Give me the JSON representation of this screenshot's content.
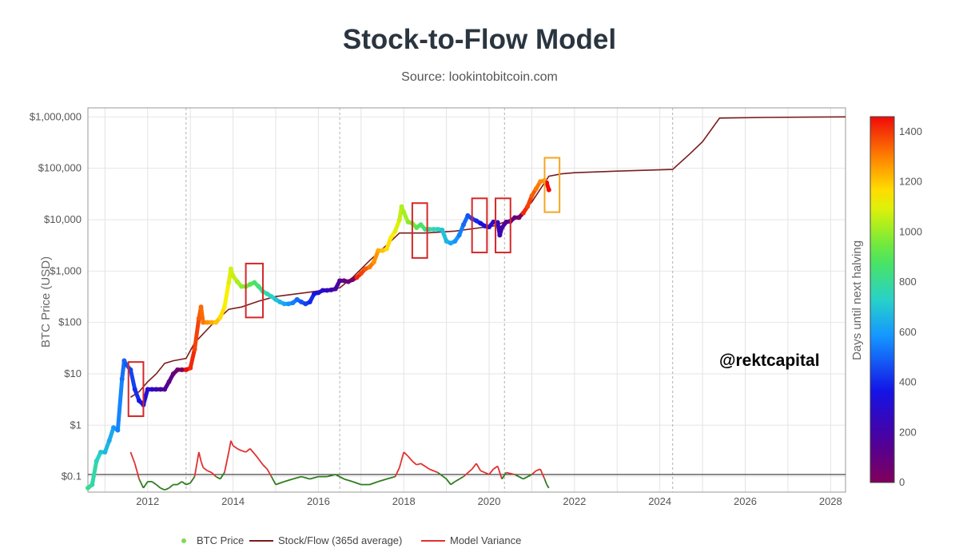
{
  "header": {
    "title": "Stock-to-Flow Model",
    "subtitle": "Source: lookintobitcoin.com"
  },
  "annotation": {
    "handle": "@rektcapital"
  },
  "colors": {
    "stock_flow": "#7b1c1c",
    "variance_above": "#e03131",
    "variance_below": "#2f7d1e",
    "baseline": "#444444",
    "box_red": "#d62728",
    "box_orange": "#f5a623"
  },
  "chart_data": {
    "type": "scatter",
    "title": "Stock-to-Flow Model",
    "xlabel": "",
    "ylabel": "BTC Price (USD)",
    "y_scale": "log",
    "ylim": [
      0.05,
      1500000
    ],
    "xlim": [
      2010.6,
      2028.35
    ],
    "y_ticks": [
      {
        "value": 0.1,
        "label": "$0.1"
      },
      {
        "value": 1,
        "label": "$1"
      },
      {
        "value": 10,
        "label": "$10"
      },
      {
        "value": 100,
        "label": "$100"
      },
      {
        "value": 1000,
        "label": "$1,000"
      },
      {
        "value": 10000,
        "label": "$10,000"
      },
      {
        "value": 100000,
        "label": "$100,000"
      },
      {
        "value": 1000000,
        "label": "$1,000,000"
      }
    ],
    "x_ticks": [
      {
        "value": 2012,
        "label": "2012"
      },
      {
        "value": 2014,
        "label": "2014"
      },
      {
        "value": 2016,
        "label": "2016"
      },
      {
        "value": 2018,
        "label": "2018"
      },
      {
        "value": 2020,
        "label": "2020"
      },
      {
        "value": 2022,
        "label": "2022"
      },
      {
        "value": 2024,
        "label": "2024"
      },
      {
        "value": 2026,
        "label": "2026"
      },
      {
        "value": 2028,
        "label": "2028"
      }
    ],
    "halvings": [
      2012.9,
      2016.5,
      2020.36,
      2024.3
    ],
    "colorbar": {
      "label": "Days until next halving",
      "min": 0,
      "max": 1460,
      "ticks": [
        0,
        200,
        400,
        600,
        800,
        1000,
        1200,
        1400
      ]
    },
    "legend": [
      {
        "name": "BTC Price",
        "kind": "marker",
        "color": "#7ed957"
      },
      {
        "name": "Stock/Flow (365d average)",
        "kind": "line",
        "color": "#7b1c1c"
      },
      {
        "name": "Model Variance",
        "kind": "line",
        "color": "#e03131"
      }
    ],
    "series": [
      {
        "name": "BTC Price",
        "x": [
          2010.6,
          2010.7,
          2010.8,
          2010.9,
          2011.0,
          2011.1,
          2011.2,
          2011.3,
          2011.4,
          2011.45,
          2011.5,
          2011.6,
          2011.7,
          2011.8,
          2011.9,
          2012.0,
          2012.1,
          2012.2,
          2012.3,
          2012.4,
          2012.5,
          2012.6,
          2012.7,
          2012.8,
          2012.9,
          2013.0,
          2013.1,
          2013.2,
          2013.25,
          2013.3,
          2013.4,
          2013.5,
          2013.6,
          2013.7,
          2013.8,
          2013.9,
          2013.95,
          2014.0,
          2014.1,
          2014.2,
          2014.3,
          2014.4,
          2014.5,
          2014.6,
          2014.7,
          2014.8,
          2014.9,
          2015.0,
          2015.1,
          2015.2,
          2015.3,
          2015.4,
          2015.5,
          2015.6,
          2015.7,
          2015.8,
          2015.9,
          2016.0,
          2016.1,
          2016.2,
          2016.3,
          2016.4,
          2016.5,
          2016.6,
          2016.7,
          2016.8,
          2016.9,
          2017.0,
          2017.1,
          2017.2,
          2017.3,
          2017.4,
          2017.5,
          2017.6,
          2017.7,
          2017.8,
          2017.9,
          2017.95,
          2018.0,
          2018.1,
          2018.2,
          2018.3,
          2018.4,
          2018.5,
          2018.6,
          2018.7,
          2018.8,
          2018.9,
          2019.0,
          2019.1,
          2019.2,
          2019.3,
          2019.4,
          2019.5,
          2019.6,
          2019.7,
          2019.8,
          2019.9,
          2020.0,
          2020.1,
          2020.2,
          2020.25,
          2020.3,
          2020.4,
          2020.5,
          2020.6,
          2020.7,
          2020.8,
          2020.9,
          2021.0,
          2021.1,
          2021.2,
          2021.3,
          2021.35,
          2021.4
        ],
        "y": [
          0.06,
          0.07,
          0.2,
          0.3,
          0.3,
          0.5,
          0.9,
          0.8,
          8,
          18,
          15,
          12,
          5,
          3,
          2.5,
          5,
          5,
          5,
          5,
          5,
          7,
          10,
          12,
          12,
          12,
          13,
          30,
          120,
          200,
          100,
          100,
          100,
          100,
          125,
          200,
          600,
          1100,
          800,
          620,
          500,
          500,
          550,
          600,
          500,
          400,
          360,
          320,
          280,
          250,
          230,
          230,
          240,
          280,
          250,
          230,
          250,
          360,
          380,
          420,
          420,
          430,
          450,
          650,
          650,
          620,
          680,
          750,
          900,
          1100,
          1200,
          1500,
          2500,
          2500,
          2700,
          4500,
          6000,
          10000,
          18000,
          14000,
          9000,
          8500,
          7000,
          8000,
          6500,
          6500,
          6500,
          6500,
          6300,
          3800,
          3500,
          3800,
          5000,
          8000,
          12000,
          10500,
          9500,
          8500,
          7500,
          7200,
          9000,
          8800,
          5000,
          7000,
          9000,
          9300,
          11000,
          11000,
          13500,
          18000,
          29000,
          40000,
          55000,
          58000,
          52000,
          38000
        ],
        "days_to_halving": [
          810,
          775,
          740,
          700,
          665,
          630,
          590,
          555,
          520,
          500,
          480,
          445,
          410,
          370,
          335,
          300,
          265,
          230,
          190,
          155,
          120,
          80,
          45,
          10,
          1460,
          1420,
          1385,
          1350,
          1330,
          1310,
          1275,
          1240,
          1200,
          1165,
          1130,
          1095,
          1075,
          1055,
          1020,
          985,
          950,
          910,
          875,
          840,
          800,
          765,
          730,
          690,
          655,
          620,
          580,
          545,
          510,
          470,
          435,
          400,
          365,
          325,
          290,
          255,
          215,
          180,
          145,
          105,
          70,
          30,
          1420,
          1385,
          1350,
          1310,
          1275,
          1240,
          1205,
          1165,
          1130,
          1095,
          1055,
          1035,
          1020,
          985,
          950,
          910,
          875,
          840,
          800,
          765,
          730,
          690,
          655,
          620,
          580,
          545,
          510,
          470,
          435,
          400,
          360,
          325,
          290,
          270,
          250,
          215,
          180,
          140,
          105,
          70,
          30,
          1420,
          1385,
          1350,
          1310,
          1290,
          1275
        ]
      },
      {
        "name": "Stock/Flow (365d average)",
        "x": [
          2011.6,
          2011.8,
          2012.0,
          2012.2,
          2012.4,
          2012.6,
          2012.9,
          2013.1,
          2013.5,
          2013.9,
          2014.2,
          2014.6,
          2015.0,
          2015.6,
          2016.0,
          2016.5,
          2016.8,
          2017.2,
          2017.6,
          2017.9,
          2018.5,
          2019.2,
          2019.8,
          2020.1,
          2020.36,
          2020.7,
          2021.0,
          2021.4,
          2021.7,
          2022.0,
          2023.0,
          2024.3,
          2024.7,
          2025.0,
          2025.4,
          2026.5,
          2027.5,
          2028.35
        ],
        "y": [
          3.5,
          4.5,
          7,
          10,
          16,
          18,
          20,
          40,
          90,
          180,
          200,
          260,
          320,
          370,
          410,
          470,
          750,
          1600,
          3200,
          5500,
          5500,
          6000,
          7000,
          7500,
          9000,
          12000,
          22000,
          70000,
          78000,
          82000,
          88000,
          95000,
          190000,
          330000,
          950000,
          975000,
          990000,
          1000000
        ]
      },
      {
        "name": "Model Variance",
        "above_threshold_color": "#e03131",
        "below_threshold_color": "#2f7d1e",
        "threshold": 0.11,
        "x": [
          2011.6,
          2011.7,
          2011.8,
          2011.9,
          2012.0,
          2012.1,
          2012.2,
          2012.3,
          2012.4,
          2012.5,
          2012.6,
          2012.7,
          2012.8,
          2012.9,
          2013.0,
          2013.1,
          2013.2,
          2013.25,
          2013.3,
          2013.4,
          2013.5,
          2013.6,
          2013.7,
          2013.8,
          2013.9,
          2013.95,
          2014.0,
          2014.1,
          2014.2,
          2014.3,
          2014.4,
          2014.5,
          2014.6,
          2014.7,
          2014.8,
          2014.9,
          2015.0,
          2015.2,
          2015.4,
          2015.6,
          2015.8,
          2016.0,
          2016.2,
          2016.4,
          2016.6,
          2016.8,
          2017.0,
          2017.2,
          2017.4,
          2017.6,
          2017.8,
          2017.9,
          2018.0,
          2018.1,
          2018.2,
          2018.3,
          2018.4,
          2018.6,
          2018.8,
          2019.0,
          2019.1,
          2019.2,
          2019.4,
          2019.6,
          2019.7,
          2019.8,
          2019.9,
          2020.0,
          2020.1,
          2020.2,
          2020.3,
          2020.4,
          2020.6,
          2020.8,
          2021.0,
          2021.1,
          2021.2,
          2021.3,
          2021.35,
          2021.4
        ],
        "y": [
          0.3,
          0.18,
          0.09,
          0.06,
          0.08,
          0.08,
          0.07,
          0.06,
          0.055,
          0.06,
          0.07,
          0.07,
          0.08,
          0.07,
          0.075,
          0.1,
          0.3,
          0.2,
          0.15,
          0.13,
          0.12,
          0.1,
          0.09,
          0.12,
          0.3,
          0.5,
          0.4,
          0.35,
          0.32,
          0.3,
          0.35,
          0.28,
          0.22,
          0.17,
          0.14,
          0.1,
          0.07,
          0.08,
          0.09,
          0.1,
          0.09,
          0.1,
          0.1,
          0.11,
          0.09,
          0.08,
          0.07,
          0.07,
          0.08,
          0.09,
          0.1,
          0.15,
          0.3,
          0.25,
          0.2,
          0.17,
          0.18,
          0.14,
          0.12,
          0.09,
          0.07,
          0.08,
          0.1,
          0.14,
          0.18,
          0.13,
          0.12,
          0.11,
          0.14,
          0.16,
          0.09,
          0.12,
          0.11,
          0.09,
          0.11,
          0.13,
          0.14,
          0.09,
          0.07,
          0.06
        ]
      }
    ],
    "annotation_boxes": [
      {
        "color": "red",
        "x": [
          2011.55,
          2011.9
        ],
        "y": [
          1.5,
          17
        ]
      },
      {
        "color": "red",
        "x": [
          2014.3,
          2014.7
        ],
        "y": [
          125,
          1400
        ]
      },
      {
        "color": "red",
        "x": [
          2018.2,
          2018.55
        ],
        "y": [
          1800,
          21000
        ]
      },
      {
        "color": "red",
        "x": [
          2019.6,
          2019.95
        ],
        "y": [
          2300,
          26000
        ]
      },
      {
        "color": "red",
        "x": [
          2020.15,
          2020.5
        ],
        "y": [
          2300,
          26000
        ]
      },
      {
        "color": "orange",
        "x": [
          2021.3,
          2021.65
        ],
        "y": [
          14000,
          160000
        ]
      }
    ]
  }
}
